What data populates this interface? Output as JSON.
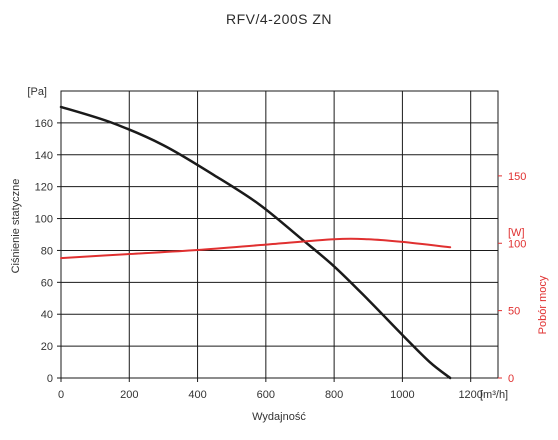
{
  "chart_data": {
    "type": "line",
    "title": "RFV/4-200S ZN",
    "xlabel": "Wydajność",
    "x_unit_label": "[m³/h]",
    "x_ticks": [
      0,
      200,
      400,
      600,
      800,
      1000,
      1200
    ],
    "x_range": [
      0,
      1280
    ],
    "y_left": {
      "label": "Ciśnienie statyczne",
      "unit_label": "[Pa]",
      "ticks": [
        0,
        20,
        40,
        60,
        80,
        100,
        120,
        140,
        160
      ],
      "range": [
        0,
        180
      ]
    },
    "y_right": {
      "label": "Pobór mocy",
      "unit_label": "[W]",
      "ticks": [
        0,
        50,
        100,
        150
      ],
      "range": [
        0,
        213
      ],
      "color": "#e03030"
    },
    "grid": true,
    "series": [
      {
        "axis": "left",
        "color": "#1a1a1a",
        "x": [
          0,
          150,
          300,
          450,
          580,
          700,
          800,
          900,
          1000,
          1080,
          1140
        ],
        "values": [
          170,
          160,
          146,
          127,
          109,
          88,
          70,
          49,
          27,
          10,
          0
        ]
      },
      {
        "axis": "right",
        "color": "#e03030",
        "x": [
          0,
          200,
          400,
          600,
          800,
          900,
          1000,
          1140
        ],
        "values": [
          89,
          92,
          95,
          99,
          103,
          103,
          101,
          97
        ]
      }
    ]
  }
}
